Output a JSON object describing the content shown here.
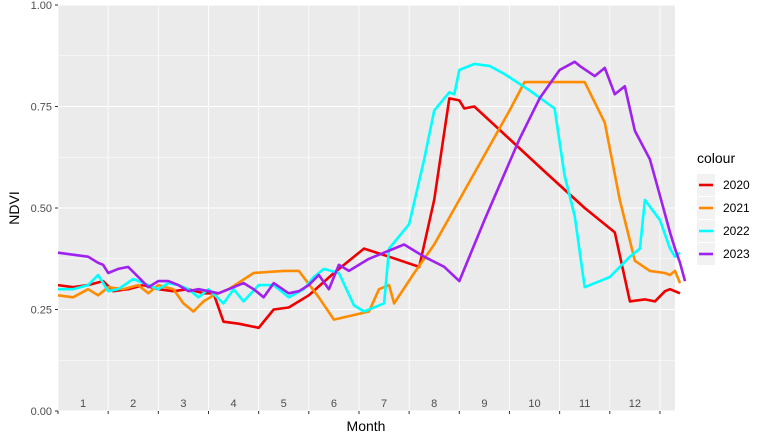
{
  "chart_data": {
    "type": "line",
    "xlabel": "Month",
    "ylabel": "NDVI",
    "ylim": [
      0,
      1
    ],
    "xlim": [
      0,
      12.3
    ],
    "y_ticks": [
      "0.00",
      "0.25",
      "0.50",
      "0.75",
      "1.00"
    ],
    "y_tick_values": [
      0,
      0.25,
      0.5,
      0.75,
      1.0
    ],
    "month_labels": [
      "1",
      "2",
      "3",
      "4",
      "5",
      "6",
      "7",
      "8",
      "9",
      "10",
      "11",
      "12"
    ],
    "grid": true,
    "legend": {
      "title": "colour",
      "position": "right"
    },
    "series": [
      {
        "name": "2020",
        "color": "#ee0000",
        "points": [
          [
            0.0,
            0.31
          ],
          [
            0.3,
            0.305
          ],
          [
            0.6,
            0.31
          ],
          [
            0.9,
            0.32
          ],
          [
            1.1,
            0.295
          ],
          [
            1.4,
            0.3
          ],
          [
            1.7,
            0.31
          ],
          [
            2.0,
            0.3
          ],
          [
            2.3,
            0.295
          ],
          [
            2.6,
            0.3
          ],
          [
            2.9,
            0.29
          ],
          [
            3.1,
            0.29
          ],
          [
            3.3,
            0.22
          ],
          [
            3.6,
            0.215
          ],
          [
            4.0,
            0.205
          ],
          [
            4.3,
            0.25
          ],
          [
            4.6,
            0.255
          ],
          [
            5.0,
            0.285
          ],
          [
            5.5,
            0.34
          ],
          [
            6.1,
            0.4
          ],
          [
            6.6,
            0.38
          ],
          [
            7.2,
            0.355
          ],
          [
            7.5,
            0.52
          ],
          [
            7.8,
            0.77
          ],
          [
            8.0,
            0.765
          ],
          [
            8.1,
            0.745
          ],
          [
            8.3,
            0.75
          ],
          [
            9.0,
            0.67
          ],
          [
            9.7,
            0.59
          ],
          [
            10.5,
            0.5
          ],
          [
            11.1,
            0.44
          ],
          [
            11.4,
            0.27
          ],
          [
            11.7,
            0.275
          ],
          [
            11.9,
            0.27
          ],
          [
            12.1,
            0.295
          ],
          [
            12.2,
            0.3
          ],
          [
            12.4,
            0.29
          ]
        ]
      },
      {
        "name": "2021",
        "color": "#ff8c00",
        "points": [
          [
            0.0,
            0.285
          ],
          [
            0.3,
            0.28
          ],
          [
            0.6,
            0.3
          ],
          [
            0.8,
            0.285
          ],
          [
            1.0,
            0.305
          ],
          [
            1.3,
            0.3
          ],
          [
            1.6,
            0.31
          ],
          [
            1.8,
            0.29
          ],
          [
            2.0,
            0.31
          ],
          [
            2.3,
            0.3
          ],
          [
            2.5,
            0.265
          ],
          [
            2.7,
            0.245
          ],
          [
            2.9,
            0.27
          ],
          [
            3.1,
            0.285
          ],
          [
            3.4,
            0.3
          ],
          [
            3.9,
            0.34
          ],
          [
            4.5,
            0.345
          ],
          [
            4.8,
            0.345
          ],
          [
            5.2,
            0.28
          ],
          [
            5.5,
            0.225
          ],
          [
            6.2,
            0.245
          ],
          [
            6.4,
            0.3
          ],
          [
            6.6,
            0.31
          ],
          [
            6.7,
            0.265
          ],
          [
            7.1,
            0.34
          ],
          [
            7.5,
            0.41
          ],
          [
            8.0,
            0.52
          ],
          [
            8.5,
            0.63
          ],
          [
            9.0,
            0.74
          ],
          [
            9.3,
            0.81
          ],
          [
            10.2,
            0.81
          ],
          [
            10.5,
            0.81
          ],
          [
            10.9,
            0.71
          ],
          [
            11.2,
            0.52
          ],
          [
            11.5,
            0.37
          ],
          [
            11.8,
            0.345
          ],
          [
            12.1,
            0.34
          ],
          [
            12.2,
            0.335
          ],
          [
            12.3,
            0.345
          ],
          [
            12.4,
            0.315
          ]
        ]
      },
      {
        "name": "2022",
        "color": "#00ffff",
        "points": [
          [
            0.0,
            0.3
          ],
          [
            0.3,
            0.3
          ],
          [
            0.6,
            0.31
          ],
          [
            0.8,
            0.335
          ],
          [
            1.0,
            0.295
          ],
          [
            1.2,
            0.3
          ],
          [
            1.5,
            0.325
          ],
          [
            1.8,
            0.31
          ],
          [
            2.0,
            0.3
          ],
          [
            2.2,
            0.315
          ],
          [
            2.4,
            0.31
          ],
          [
            2.6,
            0.3
          ],
          [
            2.8,
            0.28
          ],
          [
            3.0,
            0.3
          ],
          [
            3.3,
            0.265
          ],
          [
            3.5,
            0.3
          ],
          [
            3.7,
            0.27
          ],
          [
            4.0,
            0.31
          ],
          [
            4.3,
            0.31
          ],
          [
            4.6,
            0.28
          ],
          [
            4.9,
            0.3
          ],
          [
            5.1,
            0.33
          ],
          [
            5.3,
            0.35
          ],
          [
            5.6,
            0.34
          ],
          [
            5.9,
            0.26
          ],
          [
            6.1,
            0.245
          ],
          [
            6.5,
            0.265
          ],
          [
            6.6,
            0.4
          ],
          [
            7.0,
            0.46
          ],
          [
            7.3,
            0.62
          ],
          [
            7.5,
            0.74
          ],
          [
            7.8,
            0.785
          ],
          [
            7.9,
            0.78
          ],
          [
            8.0,
            0.84
          ],
          [
            8.3,
            0.855
          ],
          [
            8.6,
            0.85
          ],
          [
            8.9,
            0.83
          ],
          [
            9.4,
            0.79
          ],
          [
            9.9,
            0.745
          ],
          [
            10.1,
            0.58
          ],
          [
            10.3,
            0.48
          ],
          [
            10.5,
            0.305
          ],
          [
            10.8,
            0.32
          ],
          [
            11.0,
            0.33
          ],
          [
            11.4,
            0.38
          ],
          [
            11.6,
            0.4
          ],
          [
            11.7,
            0.52
          ],
          [
            12.0,
            0.47
          ],
          [
            12.2,
            0.4
          ],
          [
            12.3,
            0.38
          ],
          [
            12.4,
            0.39
          ]
        ]
      },
      {
        "name": "2023",
        "color": "#a020f0",
        "points": [
          [
            0.0,
            0.39
          ],
          [
            0.3,
            0.385
          ],
          [
            0.6,
            0.38
          ],
          [
            0.8,
            0.365
          ],
          [
            0.9,
            0.36
          ],
          [
            1.0,
            0.34
          ],
          [
            1.2,
            0.35
          ],
          [
            1.4,
            0.355
          ],
          [
            1.6,
            0.33
          ],
          [
            1.8,
            0.305
          ],
          [
            2.0,
            0.32
          ],
          [
            2.2,
            0.32
          ],
          [
            2.4,
            0.31
          ],
          [
            2.6,
            0.295
          ],
          [
            2.8,
            0.3
          ],
          [
            3.0,
            0.295
          ],
          [
            3.2,
            0.29
          ],
          [
            3.4,
            0.3
          ],
          [
            3.7,
            0.315
          ],
          [
            3.9,
            0.3
          ],
          [
            4.1,
            0.28
          ],
          [
            4.3,
            0.315
          ],
          [
            4.6,
            0.29
          ],
          [
            4.8,
            0.295
          ],
          [
            5.0,
            0.31
          ],
          [
            5.2,
            0.335
          ],
          [
            5.4,
            0.3
          ],
          [
            5.6,
            0.36
          ],
          [
            5.8,
            0.345
          ],
          [
            6.2,
            0.375
          ],
          [
            6.9,
            0.41
          ],
          [
            7.3,
            0.38
          ],
          [
            7.7,
            0.355
          ],
          [
            8.0,
            0.32
          ],
          [
            8.5,
            0.47
          ],
          [
            9.2,
            0.67
          ],
          [
            9.6,
            0.77
          ],
          [
            10.0,
            0.84
          ],
          [
            10.3,
            0.86
          ],
          [
            10.4,
            0.85
          ],
          [
            10.7,
            0.825
          ],
          [
            10.9,
            0.845
          ],
          [
            11.1,
            0.78
          ],
          [
            11.3,
            0.8
          ],
          [
            11.5,
            0.69
          ],
          [
            11.8,
            0.62
          ],
          [
            12.0,
            0.53
          ],
          [
            12.2,
            0.44
          ],
          [
            12.3,
            0.4
          ],
          [
            12.4,
            0.365
          ],
          [
            12.5,
            0.32
          ]
        ]
      }
    ]
  }
}
